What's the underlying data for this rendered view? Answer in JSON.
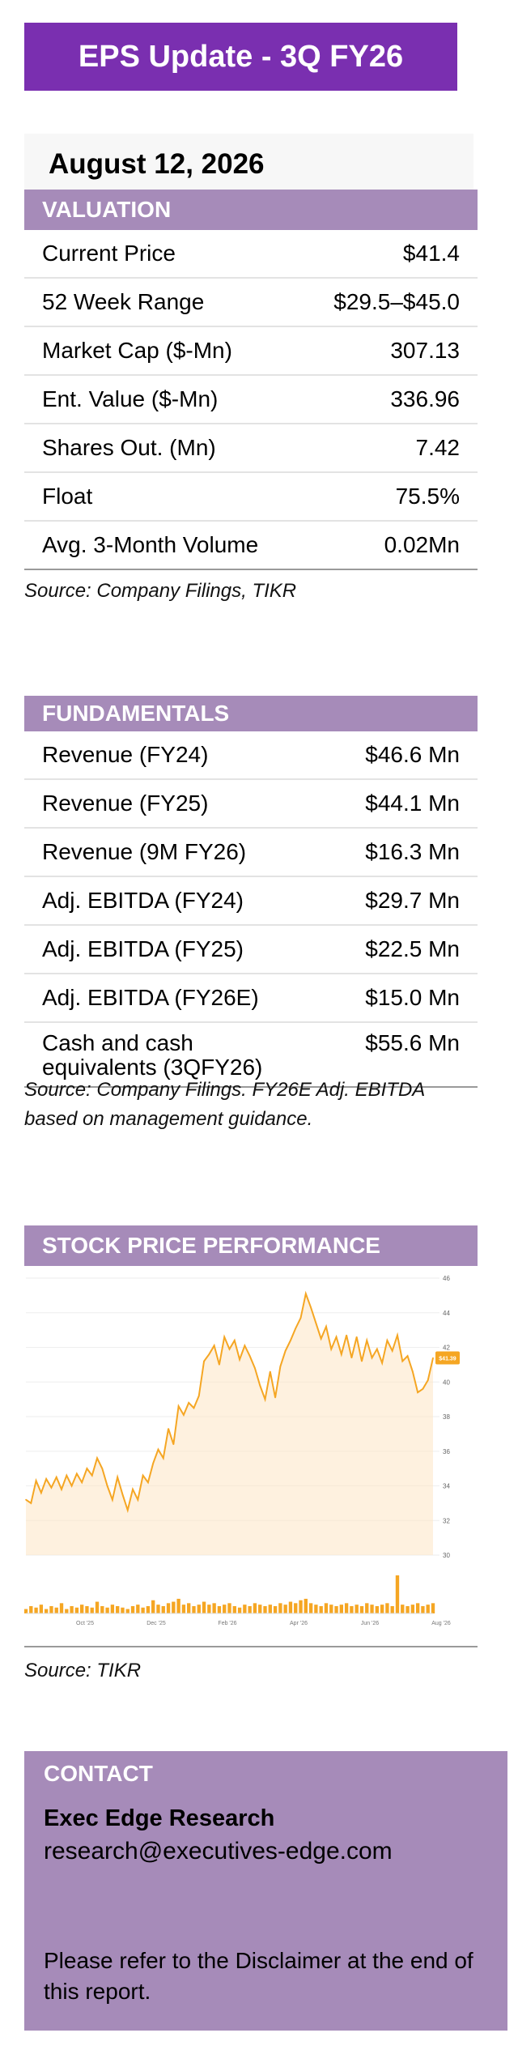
{
  "banner": {
    "title": "EPS Update - 3Q FY26"
  },
  "date": "August 12, 2026",
  "valuation": {
    "header": "VALUATION",
    "rows": [
      {
        "label": "Current Price",
        "value": "$41.4"
      },
      {
        "label": "52 Week Range",
        "value": "$29.5–$45.0"
      },
      {
        "label": "Market Cap ($-Mn)",
        "value": "307.13"
      },
      {
        "label": "Ent. Value ($-Mn)",
        "value": "336.96"
      },
      {
        "label": "Shares Out. (Mn)",
        "value": "7.42"
      },
      {
        "label": "Float",
        "value": "75.5%"
      },
      {
        "label": "Avg. 3-Month Volume",
        "value": "0.02Mn"
      }
    ],
    "source": "Source: Company Filings, TIKR"
  },
  "fundamentals": {
    "header": "FUNDAMENTALS",
    "rows": [
      {
        "label": "Revenue (FY24)",
        "value": "$46.6 Mn"
      },
      {
        "label": "Revenue (FY25)",
        "value": "$44.1 Mn"
      },
      {
        "label": "Revenue (9M FY26)",
        "value": "$16.3 Mn"
      },
      {
        "label": "Adj. EBITDA (FY24)",
        "value": "$29.7 Mn"
      },
      {
        "label": "Adj. EBITDA (FY25)",
        "value": "$22.5 Mn"
      },
      {
        "label": "Adj. EBITDA (FY26E)",
        "value": "$15.0 Mn"
      },
      {
        "label": "Cash and cash equivalents (3QFY26)",
        "value": "$55.6 Mn"
      }
    ],
    "source": "Source: Company Filings. FY26E Adj. EBITDA based on management guidance."
  },
  "stock": {
    "header": "STOCK PRICE PERFORMANCE",
    "source": "Source: TIKR"
  },
  "chart_data": {
    "type": "line",
    "title": "",
    "xlabel": "",
    "ylabel": "",
    "x_ticks": [
      "Oct '25",
      "Dec '25",
      "Feb '26",
      "Apr '26",
      "Jun '26",
      "Aug '26"
    ],
    "y_ticks": [
      30,
      32,
      34,
      36,
      38,
      40,
      42,
      44,
      46
    ],
    "ylim": [
      30,
      46
    ],
    "price_label": "$41.39",
    "grid": true,
    "colors": {
      "line": "#f5a623",
      "fill": "#fde6c4",
      "volume": "#f5a623"
    },
    "series": [
      {
        "values": [
          33.2,
          33.0,
          34.3,
          33.6,
          34.4,
          33.9,
          34.5,
          33.8,
          34.6,
          34.0,
          34.7,
          34.2,
          35.0,
          34.6,
          35.6,
          35.0,
          34.0,
          33.2,
          34.5,
          33.5,
          32.6,
          33.8,
          33.2,
          34.6,
          34.2,
          35.3,
          36.1,
          35.6,
          37.3,
          36.4,
          38.6,
          38.1,
          38.8,
          38.5,
          39.2,
          41.2,
          41.6,
          42.1,
          41.0,
          42.6,
          41.9,
          42.4,
          41.3,
          42.1,
          41.5,
          40.8,
          39.8,
          39.0,
          40.6,
          39.1,
          40.9,
          41.8,
          42.4,
          43.1,
          43.7,
          45.1,
          44.3,
          43.4,
          42.5,
          43.2,
          41.9,
          42.6,
          41.6,
          42.7,
          41.4,
          42.6,
          41.2,
          42.4,
          41.4,
          41.9,
          41.1,
          42.4,
          41.8,
          42.7,
          41.2,
          41.5,
          40.6,
          39.4,
          39.6,
          40.1,
          41.39
        ],
        "volume": [
          0.3,
          0.5,
          0.4,
          0.6,
          0.3,
          0.5,
          0.4,
          0.7,
          0.3,
          0.5,
          0.4,
          0.6,
          0.5,
          0.4,
          0.8,
          0.5,
          0.4,
          0.6,
          0.5,
          0.4,
          0.3,
          0.5,
          0.6,
          0.4,
          0.5,
          0.9,
          0.6,
          0.5,
          0.7,
          0.8,
          1.0,
          0.6,
          0.7,
          0.5,
          0.6,
          0.8,
          0.6,
          0.7,
          0.5,
          0.6,
          0.7,
          0.5,
          0.4,
          0.6,
          0.5,
          0.7,
          0.6,
          0.5,
          0.6,
          0.5,
          0.7,
          0.6,
          0.8,
          0.7,
          0.9,
          1.0,
          0.7,
          0.6,
          0.5,
          0.7,
          0.6,
          0.5,
          0.6,
          0.7,
          0.5,
          0.6,
          0.5,
          0.7,
          0.6,
          0.5,
          0.6,
          0.7,
          0.5,
          2.6,
          0.6,
          0.5,
          0.6,
          0.7,
          0.5,
          0.6,
          0.7
        ]
      }
    ]
  },
  "contact": {
    "header": "CONTACT",
    "name": "Exec Edge Research",
    "email": "research@executives-edge.com",
    "note": "Please refer to the Disclaimer at the end of this report."
  }
}
